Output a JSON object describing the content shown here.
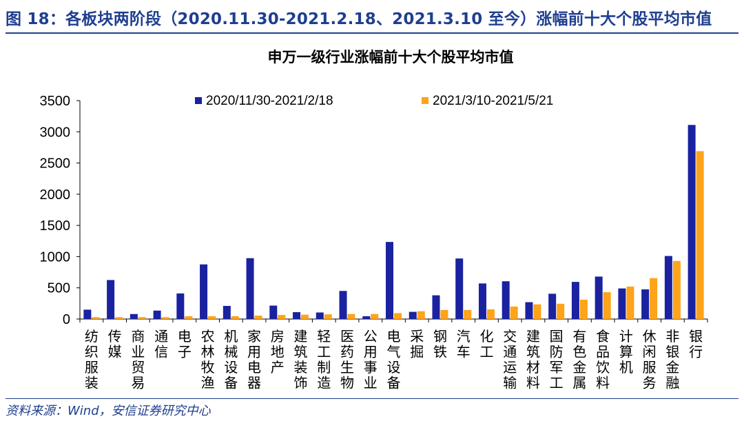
{
  "figure_title": "图 18：各板块两阶段（2020.11.30-2021.2.18、2021.3.10 至今）涨幅前十大个股平均市值",
  "source": "资料来源：Wind，安信证券研究中心",
  "colors": {
    "series1": "#1a22a0",
    "series2": "#ffa31a",
    "header": "#1f3f8f"
  },
  "chart_data": {
    "type": "bar",
    "title": "申万一级行业涨幅前十大个股平均市值",
    "xlabel": "",
    "ylabel": "",
    "ylim": [
      0,
      3500
    ],
    "yticks": [
      0,
      500,
      1000,
      1500,
      2000,
      2500,
      3000,
      3500
    ],
    "legend_position": "top",
    "categories": [
      "纺织服装",
      "传媒",
      "商业贸易",
      "通信",
      "电子",
      "农林牧渔",
      "机械设备",
      "家用电器",
      "房地产",
      "建筑装饰",
      "轻工制造",
      "医药生物",
      "公用事业",
      "电气设备",
      "采掘",
      "钢铁",
      "汽车",
      "化工",
      "交通运输",
      "建筑材料",
      "国防军工",
      "有色金属",
      "食品饮料",
      "计算机",
      "休闲服务",
      "非银金融",
      "银行"
    ],
    "series": [
      {
        "name": "2020/11/30-2021/2/18",
        "values": [
          150,
          625,
          80,
          135,
          410,
          875,
          210,
          975,
          215,
          110,
          105,
          450,
          45,
          1235,
          115,
          380,
          970,
          570,
          605,
          270,
          405,
          595,
          680,
          490,
          475,
          1010,
          3110
        ]
      },
      {
        "name": "2021/3/10-2021/5/21",
        "values": [
          30,
          30,
          30,
          30,
          45,
          45,
          45,
          55,
          65,
          70,
          75,
          80,
          80,
          95,
          125,
          145,
          145,
          155,
          200,
          235,
          245,
          310,
          430,
          520,
          655,
          930,
          2690
        ]
      }
    ]
  }
}
